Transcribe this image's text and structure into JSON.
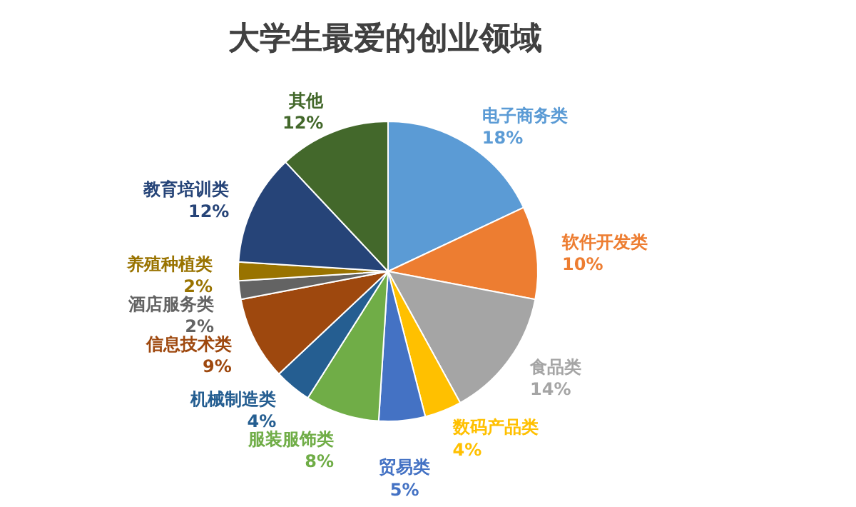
{
  "chart_data": {
    "type": "pie",
    "title": "大学生最爱的创业领域",
    "categories": [
      "电子商务类",
      "软件开发类",
      "食品类",
      "数码产品类",
      "贸易类",
      "服装服饰类",
      "机械制造类",
      "信息技术类",
      "酒店服务类",
      "养殖种植类",
      "教育培训类",
      "其他"
    ],
    "values": [
      18,
      10,
      14,
      4,
      5,
      8,
      4,
      9,
      2,
      2,
      12,
      12
    ],
    "value_labels": [
      "18%",
      "10%",
      "14%",
      "4%",
      "5%",
      "8%",
      "4%",
      "9%",
      "2%",
      "2%",
      "12%",
      "12%"
    ],
    "colors": [
      "#5b9bd5",
      "#ed7d31",
      "#a5a5a5",
      "#ffc000",
      "#4472c4",
      "#70ad47",
      "#255e91",
      "#9e480e",
      "#636363",
      "#997300",
      "#264478",
      "#43682b"
    ]
  }
}
